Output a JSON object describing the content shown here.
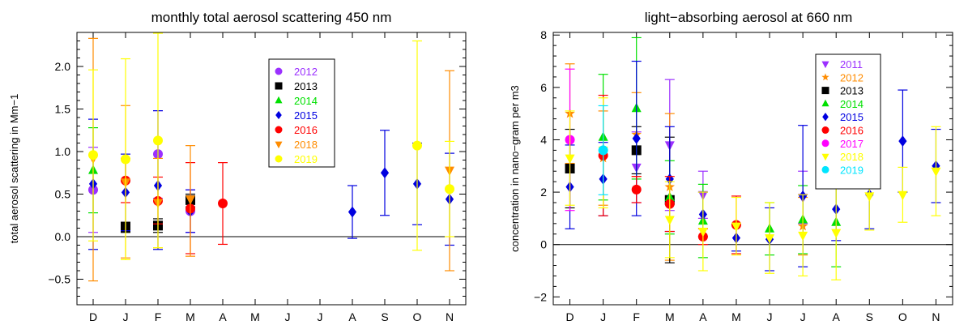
{
  "chart_data": [
    {
      "type": "scatter",
      "title": "monthly total aerosol scattering 450 nm",
      "ylabel": "total aerosol scattering in Mm−1",
      "xlabel": "",
      "categories": [
        "D",
        "J",
        "F",
        "M",
        "A",
        "M",
        "J",
        "J",
        "A",
        "S",
        "O",
        "N"
      ],
      "ylim": [
        -0.8,
        2.4
      ],
      "yticks": [
        "−0.5",
        "0.0",
        "0.5",
        "1.0",
        "1.5",
        "2.0"
      ],
      "yticks_values": [
        -0.5,
        0.0,
        0.5,
        1.0,
        1.5,
        2.0
      ],
      "grid": false,
      "zero_line": 0,
      "legend_position": "top-right",
      "series": [
        {
          "name": "2012",
          "color": "#9b30ff",
          "marker": "circle",
          "points": [
            {
              "x": 0,
              "y": 0.55,
              "lo": 0.05,
              "hi": 1.05
            },
            {
              "x": 2,
              "y": 0.97,
              "lo": 0.45,
              "hi": 1.48
            },
            {
              "x": 3,
              "y": 0.3,
              "lo": 0.05,
              "hi": 0.55
            }
          ]
        },
        {
          "name": "2013",
          "color": "#000000",
          "marker": "square",
          "points": [
            {
              "x": 1,
              "y": 0.11,
              "lo": 0.05,
              "hi": 0.17
            },
            {
              "x": 2,
              "y": 0.13,
              "lo": 0.05,
              "hi": 0.21
            },
            {
              "x": 3,
              "y": 0.43,
              "lo": 0.35,
              "hi": 0.5
            }
          ]
        },
        {
          "name": "2014",
          "color": "#00e000",
          "marker": "triangle-up",
          "points": [
            {
              "x": 0,
              "y": 0.78,
              "lo": 0.28,
              "hi": 1.28
            }
          ]
        },
        {
          "name": "2015",
          "color": "#0000e0",
          "marker": "diamond",
          "points": [
            {
              "x": 0,
              "y": 0.62,
              "lo": -0.15,
              "hi": 1.38
            },
            {
              "x": 1,
              "y": 0.52,
              "lo": 0.07,
              "hi": 0.97
            },
            {
              "x": 2,
              "y": 0.6,
              "lo": -0.15,
              "hi": 1.48
            },
            {
              "x": 3,
              "y": 0.3,
              "lo": 0.05,
              "hi": 0.55
            },
            {
              "x": 8,
              "y": 0.29,
              "lo": -0.02,
              "hi": 0.6
            },
            {
              "x": 9,
              "y": 0.75,
              "lo": 0.25,
              "hi": 1.25
            },
            {
              "x": 10,
              "y": 0.62,
              "lo": 0.14,
              "hi": 1.1
            },
            {
              "x": 11,
              "y": 0.44,
              "lo": -0.1,
              "hi": 0.98
            }
          ]
        },
        {
          "name": "2016",
          "color": "#ff0000",
          "marker": "circle",
          "points": [
            {
              "x": 1,
              "y": 0.66,
              "lo": 0.4,
              "hi": 0.92
            },
            {
              "x": 2,
              "y": 0.42,
              "lo": 0.15,
              "hi": 0.7
            },
            {
              "x": 3,
              "y": 0.33,
              "lo": -0.2,
              "hi": 0.87
            },
            {
              "x": 4,
              "y": 0.39,
              "lo": -0.09,
              "hi": 0.87
            }
          ]
        },
        {
          "name": "2018",
          "color": "#ff8c00",
          "marker": "triangle-down",
          "points": [
            {
              "x": 0,
              "y": 0.92,
              "lo": -0.52,
              "hi": 2.33
            },
            {
              "x": 1,
              "y": 0.64,
              "lo": -0.25,
              "hi": 1.54
            },
            {
              "x": 2,
              "y": 0.4,
              "lo": -0.13,
              "hi": 0.92
            },
            {
              "x": 3,
              "y": 0.44,
              "lo": -0.23,
              "hi": 1.07
            },
            {
              "x": 11,
              "y": 0.78,
              "lo": -0.4,
              "hi": 1.95
            }
          ]
        },
        {
          "name": "2019",
          "color": "#ffff00",
          "marker": "circle",
          "points": [
            {
              "x": 0,
              "y": 0.96,
              "lo": -0.05,
              "hi": 1.96
            },
            {
              "x": 1,
              "y": 0.91,
              "lo": -0.27,
              "hi": 2.09
            },
            {
              "x": 2,
              "y": 1.13,
              "lo": -0.13,
              "hi": 2.39
            },
            {
              "x": 10,
              "y": 1.07,
              "lo": -0.16,
              "hi": 2.3
            },
            {
              "x": 11,
              "y": 0.56,
              "lo": 0.0,
              "hi": 1.12
            }
          ]
        }
      ]
    },
    {
      "type": "scatter",
      "title": "light−absorbing aerosol at 660 nm",
      "ylabel": "concentration in    nano−gram per m3",
      "xlabel": "",
      "categories": [
        "D",
        "J",
        "F",
        "M",
        "A",
        "M",
        "J",
        "J",
        "A",
        "S",
        "O",
        "N"
      ],
      "ylim": [
        -2.3,
        8.1
      ],
      "yticks": [
        "−2",
        "0",
        "2",
        "4",
        "6",
        "8"
      ],
      "yticks_values": [
        -2,
        0,
        2,
        4,
        6,
        8
      ],
      "grid": false,
      "zero_line": 0,
      "legend_position": "top-right",
      "series": [
        {
          "name": "2011",
          "color": "#9b30ff",
          "marker": "triangle-down",
          "points": [
            {
              "x": 2,
              "y": 2.95,
              "lo": 1.6,
              "hi": 4.3
            },
            {
              "x": 3,
              "y": 3.8,
              "lo": 1.3,
              "hi": 6.3
            },
            {
              "x": 4,
              "y": 1.9,
              "lo": 1.0,
              "hi": 2.8
            },
            {
              "x": 7,
              "y": 1.8,
              "lo": 0.8,
              "hi": 2.8
            }
          ]
        },
        {
          "name": "2012",
          "color": "#ff8c00",
          "marker": "star",
          "points": [
            {
              "x": 0,
              "y": 5.0,
              "lo": 3.1,
              "hi": 6.9
            },
            {
              "x": 1,
              "y": 3.3,
              "lo": 1.5,
              "hi": 5.1
            },
            {
              "x": 2,
              "y": 4.2,
              "lo": 2.6,
              "hi": 5.8
            },
            {
              "x": 3,
              "y": 2.2,
              "lo": -0.6,
              "hi": 5.0
            },
            {
              "x": 7,
              "y": 0.7,
              "lo": -0.4,
              "hi": 1.8
            }
          ]
        },
        {
          "name": "2013",
          "color": "#000000",
          "marker": "square",
          "points": [
            {
              "x": 0,
              "y": 2.9,
              "lo": 1.4,
              "hi": 4.4
            },
            {
              "x": 2,
              "y": 3.6,
              "lo": 2.7,
              "hi": 4.5
            },
            {
              "x": 3,
              "y": 1.7,
              "lo": -0.7,
              "hi": 4.1
            }
          ]
        },
        {
          "name": "2014",
          "color": "#00e000",
          "marker": "triangle-up",
          "points": [
            {
              "x": 1,
              "y": 4.1,
              "lo": 1.7,
              "hi": 6.5
            },
            {
              "x": 2,
              "y": 5.2,
              "lo": 2.5,
              "hi": 7.9
            },
            {
              "x": 3,
              "y": 1.8,
              "lo": 0.4,
              "hi": 3.2
            },
            {
              "x": 4,
              "y": 0.9,
              "lo": -0.5,
              "hi": 2.3
            },
            {
              "x": 6,
              "y": 0.6,
              "lo": -0.4,
              "hi": 1.6
            },
            {
              "x": 7,
              "y": 0.95,
              "lo": -0.35,
              "hi": 2.25
            },
            {
              "x": 8,
              "y": 0.85,
              "lo": -0.85,
              "hi": 2.5
            }
          ]
        },
        {
          "name": "2015",
          "color": "#0000e0",
          "marker": "diamond",
          "points": [
            {
              "x": 0,
              "y": 2.2,
              "lo": 0.6,
              "hi": 3.8
            },
            {
              "x": 1,
              "y": 2.5,
              "lo": 1.1,
              "hi": 3.9
            },
            {
              "x": 2,
              "y": 4.05,
              "lo": 1.1,
              "hi": 7.0
            },
            {
              "x": 3,
              "y": 2.5,
              "lo": 0.5,
              "hi": 4.5
            },
            {
              "x": 4,
              "y": 1.15,
              "lo": 0.3,
              "hi": 2.0
            },
            {
              "x": 5,
              "y": 0.25,
              "lo": -0.25,
              "hi": 0.75
            },
            {
              "x": 6,
              "y": 0.2,
              "lo": -1.0,
              "hi": 1.4
            },
            {
              "x": 7,
              "y": 1.85,
              "lo": -0.85,
              "hi": 4.55
            },
            {
              "x": 8,
              "y": 1.35,
              "lo": 0.15,
              "hi": 2.55
            },
            {
              "x": 9,
              "y": 1.9,
              "lo": 0.6,
              "hi": 3.2
            },
            {
              "x": 10,
              "y": 3.95,
              "lo": 2.0,
              "hi": 5.9
            },
            {
              "x": 11,
              "y": 3.0,
              "lo": 1.6,
              "hi": 4.4
            }
          ]
        },
        {
          "name": "2016",
          "color": "#ff0000",
          "marker": "circle",
          "points": [
            {
              "x": 1,
              "y": 3.4,
              "lo": 1.1,
              "hi": 5.7
            },
            {
              "x": 2,
              "y": 2.1,
              "lo": 1.6,
              "hi": 2.6
            },
            {
              "x": 3,
              "y": 1.55,
              "lo": 0.5,
              "hi": 2.6
            },
            {
              "x": 4,
              "y": 0.3,
              "lo": 0.0,
              "hi": 0.6
            },
            {
              "x": 5,
              "y": 0.75,
              "lo": -0.35,
              "hi": 1.85
            }
          ]
        },
        {
          "name": "2017",
          "color": "#ff00ff",
          "marker": "circle",
          "points": [
            {
              "x": 0,
              "y": 4.0,
              "lo": 1.3,
              "hi": 6.7
            }
          ]
        },
        {
          "name": "2018",
          "color": "#ffff00",
          "marker": "triangle-down",
          "points": [
            {
              "x": 0,
              "y": 3.3,
              "lo": 1.5,
              "hi": 5.1
            },
            {
              "x": 1,
              "y": 3.6,
              "lo": 1.4,
              "hi": 5.6
            },
            {
              "x": 3,
              "y": 0.95,
              "lo": -0.5,
              "hi": 2.4
            },
            {
              "x": 4,
              "y": 0.5,
              "lo": -1.0,
              "hi": 2.0
            },
            {
              "x": 5,
              "y": 0.7,
              "lo": -0.4,
              "hi": 1.8
            },
            {
              "x": 6,
              "y": 0.25,
              "lo": -1.1,
              "hi": 1.6
            },
            {
              "x": 7,
              "y": 0.35,
              "lo": -1.2,
              "hi": 1.9
            },
            {
              "x": 8,
              "y": 0.45,
              "lo": -1.35,
              "hi": 2.25
            },
            {
              "x": 9,
              "y": 1.85,
              "lo": 0.55,
              "hi": 3.15
            },
            {
              "x": 10,
              "y": 1.9,
              "lo": 0.85,
              "hi": 2.95
            },
            {
              "x": 11,
              "y": 2.8,
              "lo": 1.1,
              "hi": 4.5
            }
          ]
        },
        {
          "name": "2019",
          "color": "#00e5ff",
          "marker": "circle",
          "points": [
            {
              "x": 1,
              "y": 3.6,
              "lo": 1.9,
              "hi": 5.3
            }
          ]
        }
      ]
    }
  ]
}
